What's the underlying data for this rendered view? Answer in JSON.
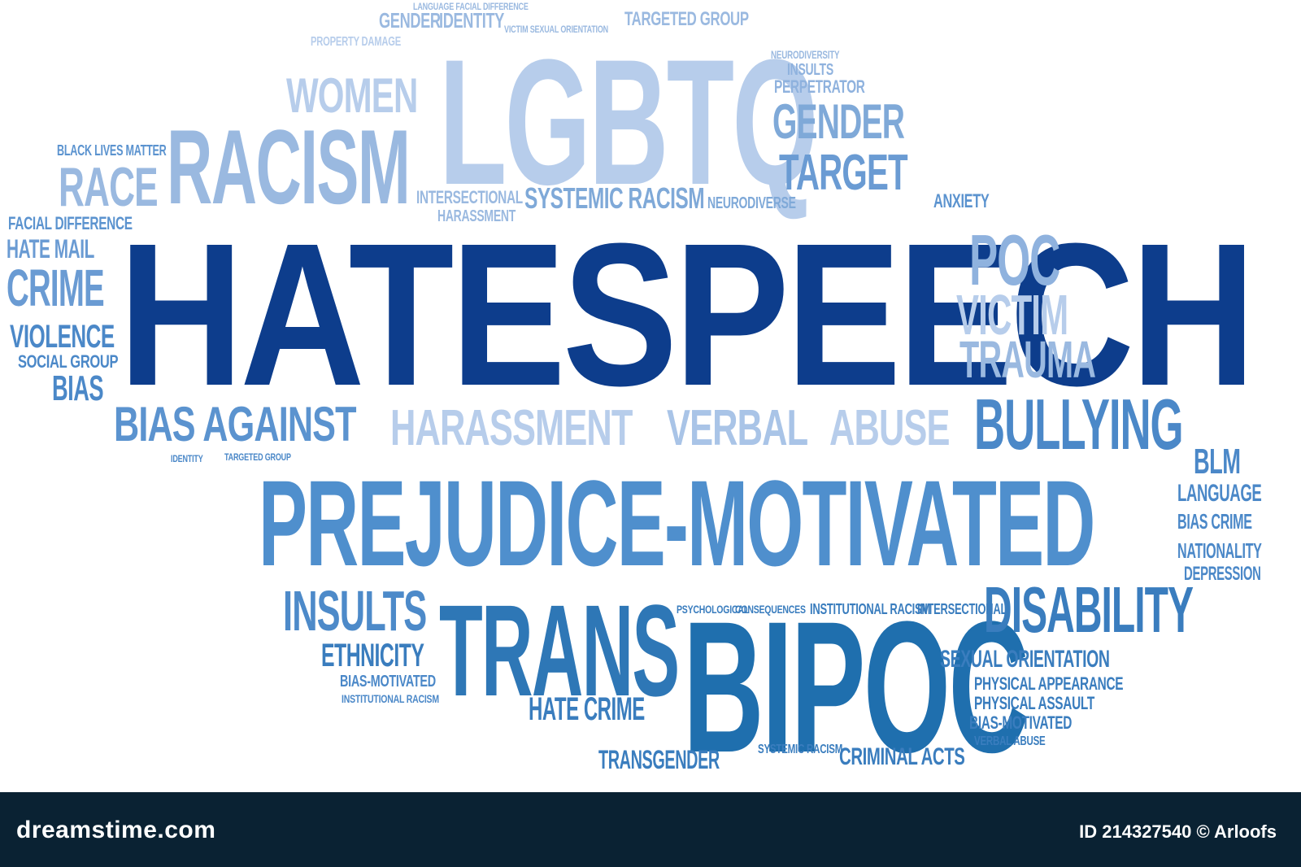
{
  "words": {
    "hate_speech": "HATESPEECH",
    "prejudice_motivated": "PREJUDICE-MOTIVATED",
    "lgbtq_big": "LGBTQ",
    "bipoc_big": "BIPOC",
    "trans_big": "TRANS",
    "racism_big": "RACISM",
    "harassment": "HARASSMENT",
    "verbal": "VERBAL",
    "abuse": "ABUSE",
    "bias_against_big": "BIAS AGAINST",
    "bullying": "BULLYING",
    "disability_big": "DISABILITY",
    "insults_big": "INSULTS",
    "women_big": "WOMEN",
    "race_big": "RACE",
    "target_big": "TARGET",
    "gender_big": "GENDER",
    "poc_big": "POC",
    "victim_big": "VICTIM",
    "trauma_big": "TRAUMA",
    "crime_big": "CRIME",
    "violence": "VIOLENCE",
    "hate_mail": "HATE MAIL",
    "facial_difference": "FACIAL DIFFERENCE",
    "social_group": "SOCIAL GROUP",
    "bias_big": "BIAS",
    "systemic_racism": "SYSTEMIC RACISM",
    "intersectional": "INTERSECTIONAL",
    "harassment_small": "HARASSMENT",
    "ethnicity": "ETHNICITY",
    "sexual_orientation": "SEXUAL ORIENTATION",
    "physical_appearance": "PHYSICAL APPEARANCE",
    "physical_assault": "PHYSICAL ASSAULT",
    "bias_motivated": "BIAS-MOTIVATED",
    "hate_crime": "HATE CRIME",
    "transgender": "TRANSGENDER",
    "criminal_acts": "CRIMINAL ACTS",
    "blm": "BLM",
    "language": "LANGUAGE",
    "bias_crime": "BIAS CRIME",
    "nationality": "NATIONALITY",
    "depression": "DEPRESSION",
    "anxiety": "ANXIETY",
    "perpetrator": "PERPETRATOR",
    "neurodiversity": "NEURODIVERSITY",
    "neurodiverse": "NEURODIVERSE",
    "identity": "IDENTITY",
    "targeted_group": "TARGETED GROUP",
    "property_damage": "PROPERTY DAMAGE",
    "black_lives_matter": "BLACK LIVES MATTER",
    "institutional_racism": "INSTITUTIONAL RACISM",
    "psychological": "PSYCHOLOGICAL",
    "consequences": "CONSEQUENCES",
    "verbal_abuse": "VERBAL ABUSE",
    "language_facial": "LANGUAGE FACIAL DIFFERENCE",
    "victim_sexual_orientation": "VICTIM SEXUAL ORIENTATION"
  },
  "colors": {
    "darkest": "#0d3d8c",
    "dark": "#1f5fa3",
    "mid": "#3f7fc0",
    "light": "#7fa9d8",
    "lightest": "#b7cdeb",
    "bar": "#0a2233"
  },
  "footer": {
    "brand": "dreamstime.com",
    "credit": "ID 214327540 © Arloofs"
  }
}
